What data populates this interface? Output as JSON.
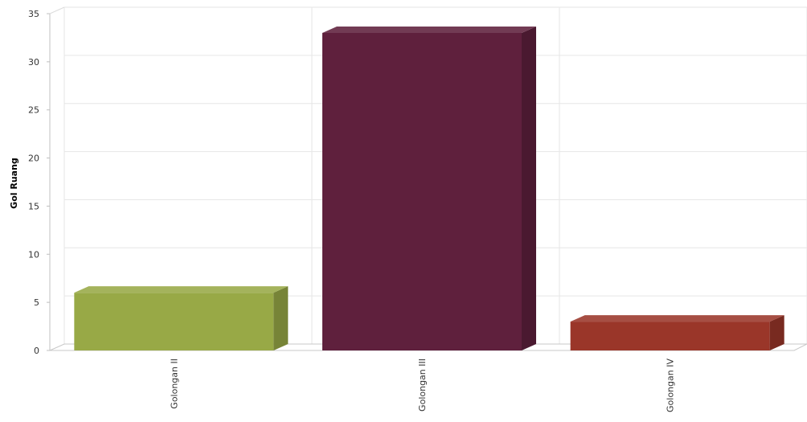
{
  "chart_data": {
    "type": "bar",
    "style": "3d-column",
    "title": "",
    "xlabel": "",
    "ylabel": "Gol Ruang",
    "categories": [
      "Golongan II",
      "Golongan III",
      "Golongan IV"
    ],
    "values": [
      6,
      33,
      3
    ],
    "ylim": [
      0,
      35
    ],
    "yticks": [
      0,
      5,
      10,
      15,
      20,
      25,
      30,
      35
    ],
    "grid": true,
    "legend": "none",
    "colors": [
      "#98a946",
      "#5f203d",
      "#9a3629"
    ]
  }
}
